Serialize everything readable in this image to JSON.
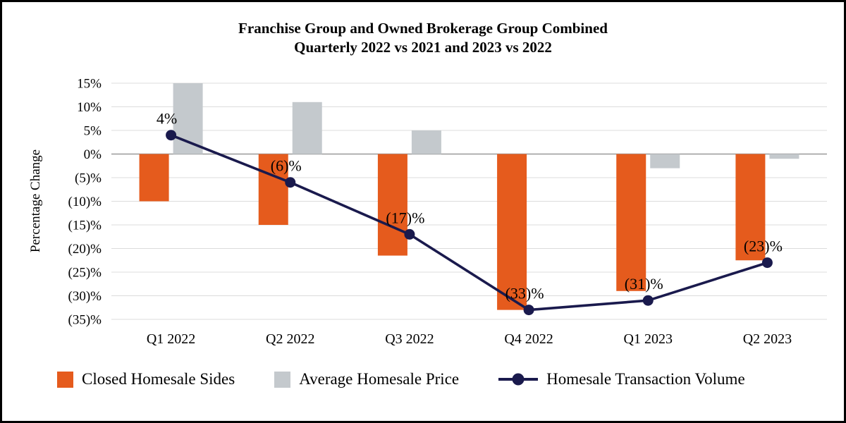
{
  "chart_data": {
    "type": "combo",
    "title": "Franchise Group and Owned Brokerage Group Combined",
    "subtitle": "Quarterly 2022 vs 2021 and 2023 vs 2022",
    "ylabel": "Percentage Change",
    "categories": [
      "Q1 2022",
      "Q2 2022",
      "Q3 2022",
      "Q4 2022",
      "Q1 2023",
      "Q2 2023"
    ],
    "series": [
      {
        "name": "Closed Homesale Sides",
        "type": "bar",
        "color": "#E55B1D",
        "values": [
          -10,
          -15,
          -21.5,
          -33,
          -29,
          -22.5
        ]
      },
      {
        "name": "Average Homesale Price",
        "type": "bar",
        "color": "#C4C9CD",
        "values": [
          15,
          11,
          5,
          0,
          -3,
          -1
        ]
      },
      {
        "name": "Homesale Transaction Volume",
        "type": "line",
        "color": "#1A1A4D",
        "values": [
          4,
          -6,
          -17,
          -33,
          -31,
          -23
        ],
        "labels": [
          "4%",
          "(6)%",
          "(17)%",
          "(33)%",
          "(31)%",
          "(23)%"
        ]
      }
    ],
    "ylim": [
      -35,
      15
    ],
    "ytick_step": 5,
    "ytick_labels": [
      "15%",
      "10%",
      "5%",
      "0%",
      "(5)%",
      "(10)%",
      "(15)%",
      "(20)%",
      "(25)%",
      "(30)%",
      "(35)%"
    ],
    "grid": true,
    "legend_position": "bottom",
    "style": {
      "gridline_color": "#DCDCDC",
      "zero_line_color": "#999999",
      "frame_border_color": "#000000",
      "background": "#FFFFFF"
    }
  }
}
